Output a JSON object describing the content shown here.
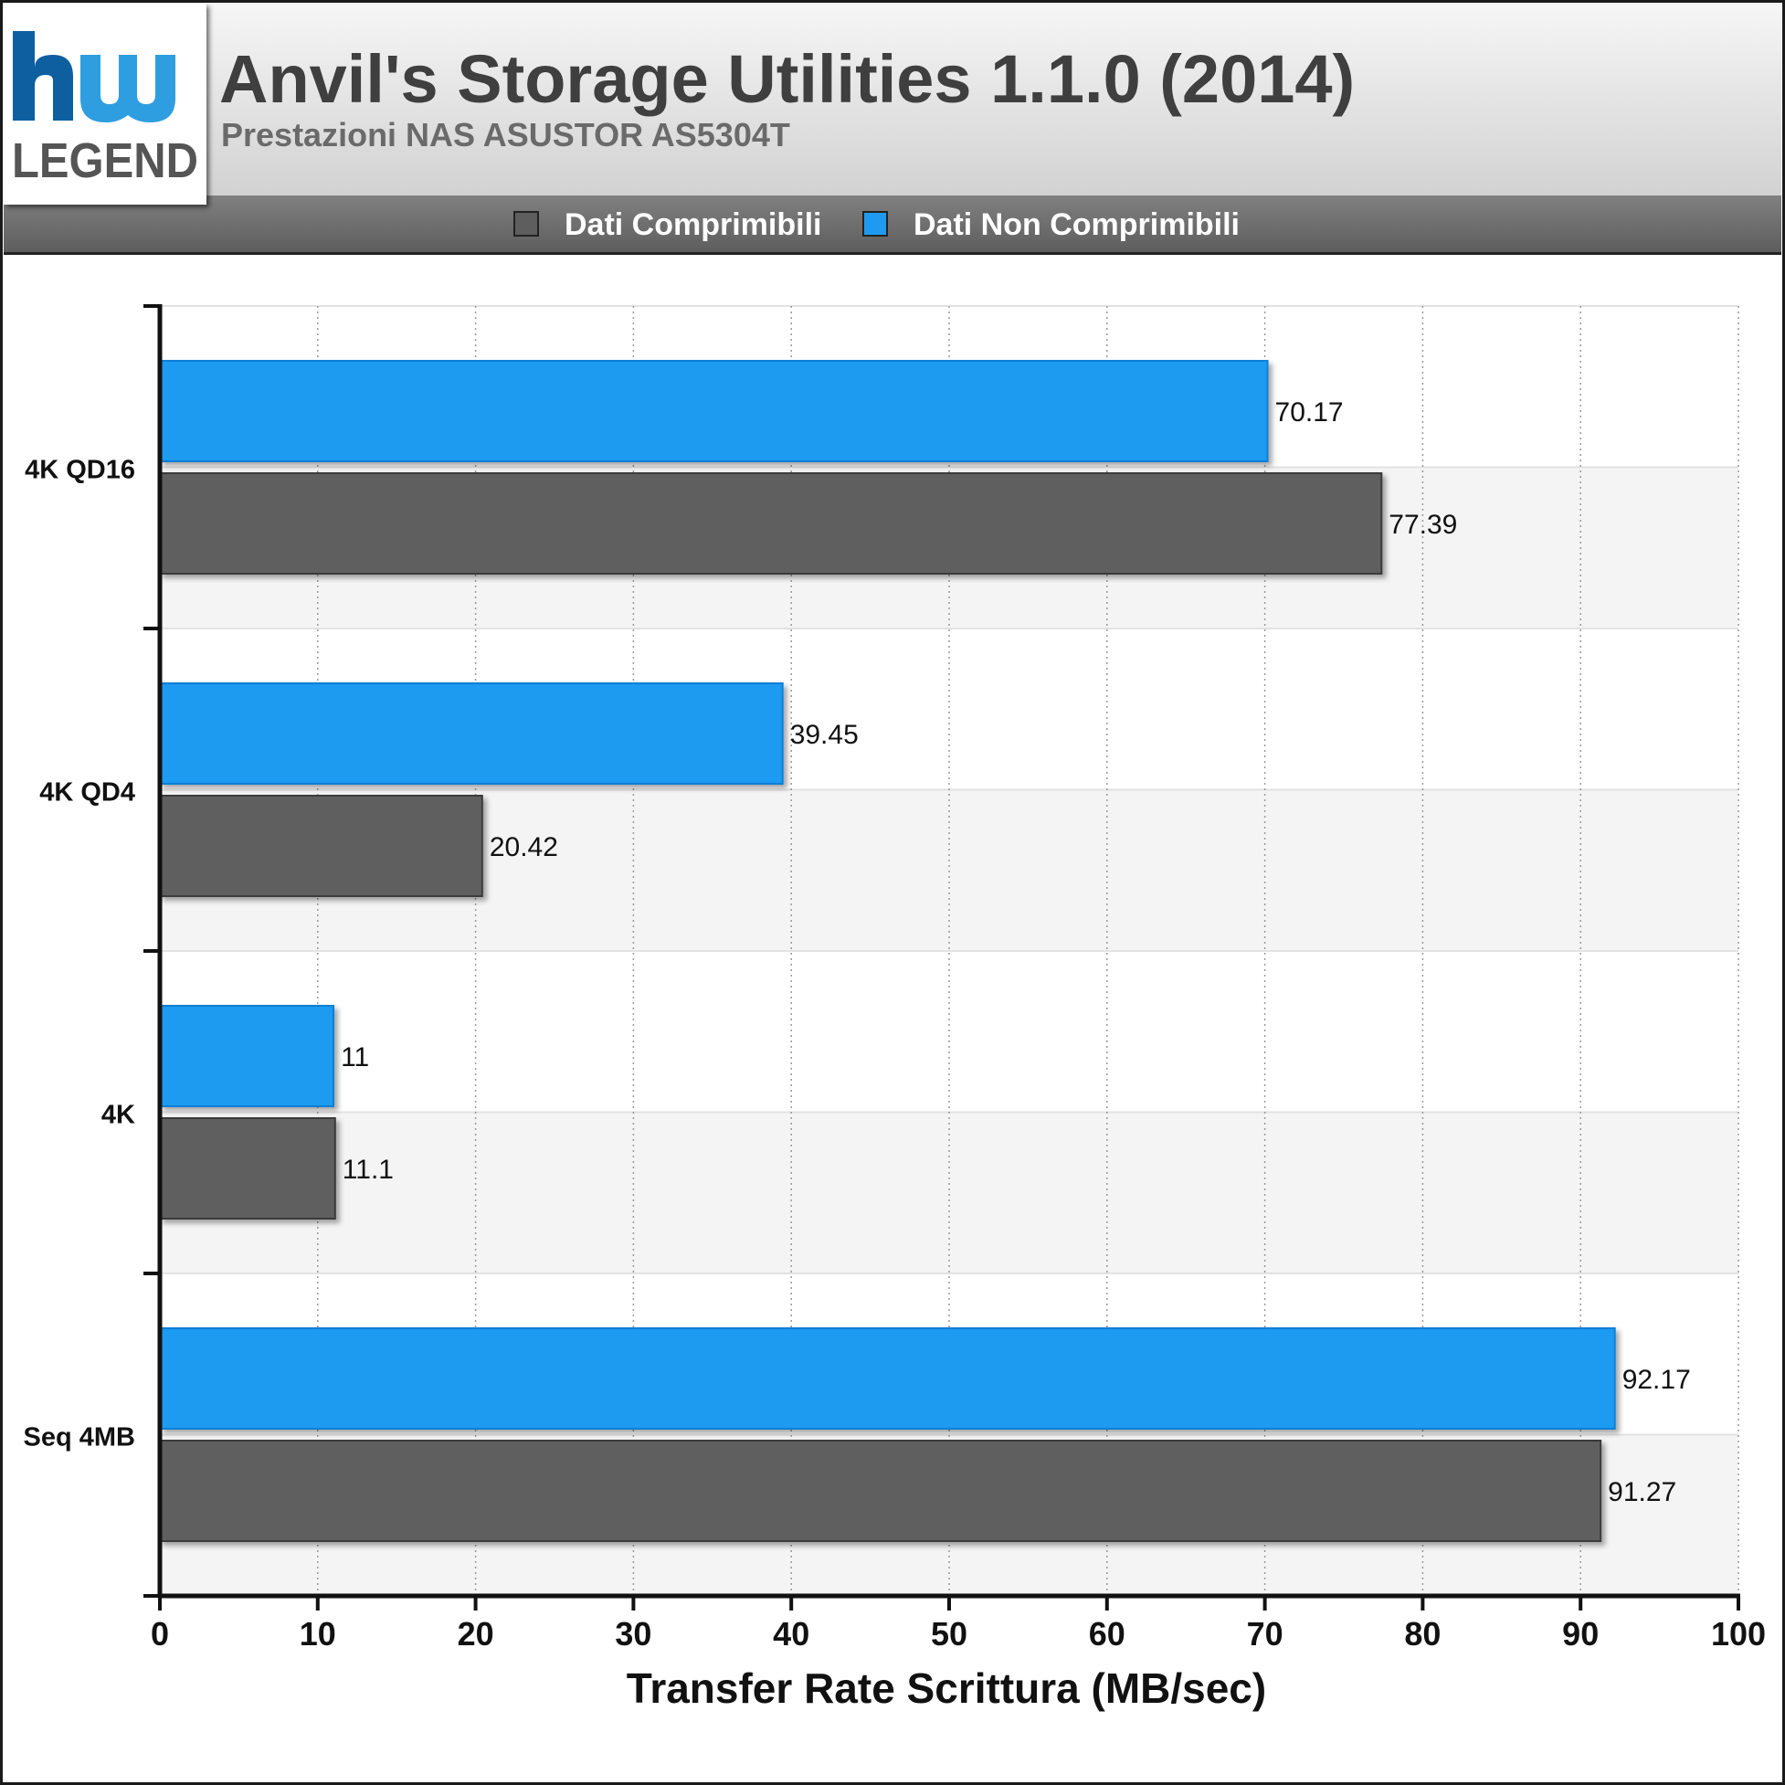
{
  "header": {
    "title": "Anvil's Storage Utilities 1.1.0 (2014)",
    "subtitle": "Prestazioni NAS ASUSTOR AS5304T"
  },
  "logo": {
    "line1": "hw",
    "line2": "LEGEND",
    "colors": [
      "#0d5fa0",
      "#2f9ee0",
      "#555555"
    ]
  },
  "chart_data": {
    "type": "bar",
    "orientation": "horizontal",
    "categories": [
      "4K QD16",
      "4K QD4",
      "4K",
      "Seq 4MB"
    ],
    "series": [
      {
        "name": "Dati Non Comprimibili",
        "color": "#1e9bf0",
        "values": [
          70.17,
          39.45,
          11,
          92.17
        ]
      },
      {
        "name": "Dati Comprimibili",
        "color": "#5e5e5e",
        "values": [
          77.39,
          20.42,
          11.1,
          91.27
        ]
      }
    ],
    "legend": [
      {
        "name": "Dati Comprimibili",
        "color": "#5e5e5e"
      },
      {
        "name": "Dati Non Comprimibili",
        "color": "#1e9bf0"
      }
    ],
    "legend_position": "top",
    "xlabel": "Transfer Rate Scrittura (MB/sec)",
    "ylabel": "",
    "xlim": [
      0,
      100
    ],
    "xticks": [
      0,
      10,
      20,
      30,
      40,
      50,
      60,
      70,
      80,
      90,
      100
    ],
    "grid": true
  }
}
